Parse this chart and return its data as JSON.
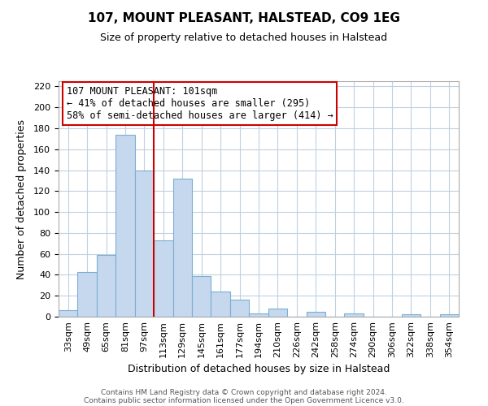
{
  "title": "107, MOUNT PLEASANT, HALSTEAD, CO9 1EG",
  "subtitle": "Size of property relative to detached houses in Halstead",
  "xlabel": "Distribution of detached houses by size in Halstead",
  "ylabel": "Number of detached properties",
  "bin_labels": [
    "33sqm",
    "49sqm",
    "65sqm",
    "81sqm",
    "97sqm",
    "113sqm",
    "129sqm",
    "145sqm",
    "161sqm",
    "177sqm",
    "194sqm",
    "210sqm",
    "226sqm",
    "242sqm",
    "258sqm",
    "274sqm",
    "290sqm",
    "306sqm",
    "322sqm",
    "338sqm",
    "354sqm"
  ],
  "bar_heights": [
    6,
    43,
    59,
    174,
    140,
    73,
    132,
    39,
    24,
    16,
    3,
    8,
    0,
    5,
    0,
    3,
    0,
    0,
    2,
    0,
    2
  ],
  "bar_color": "#c5d8ed",
  "bar_edge_color": "#7bafd4",
  "vline_x": 4.5,
  "vline_color": "#cc0000",
  "annotation_title": "107 MOUNT PLEASANT: 101sqm",
  "annotation_line1": "← 41% of detached houses are smaller (295)",
  "annotation_line2": "58% of semi-detached houses are larger (414) →",
  "annotation_box_color": "#ffffff",
  "annotation_box_edge": "#cc0000",
  "ylim": [
    0,
    225
  ],
  "yticks": [
    0,
    20,
    40,
    60,
    80,
    100,
    120,
    140,
    160,
    180,
    200,
    220
  ],
  "footer_line1": "Contains HM Land Registry data © Crown copyright and database right 2024.",
  "footer_line2": "Contains public sector information licensed under the Open Government Licence v3.0.",
  "background_color": "#ffffff",
  "grid_color": "#c0d0e0",
  "title_fontsize": 11,
  "subtitle_fontsize": 9,
  "ylabel_fontsize": 9,
  "xlabel_fontsize": 9,
  "tick_fontsize": 8,
  "annotation_fontsize": 8.5,
  "footer_fontsize": 6.5
}
